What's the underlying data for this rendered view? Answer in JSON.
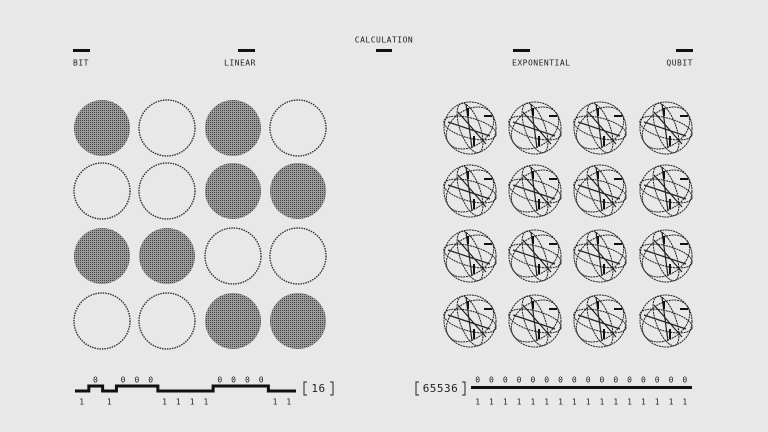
{
  "header": {
    "title": "CALCULATION",
    "left_label": "BIT",
    "left_mode": "LINEAR",
    "right_mode": "EXPONENTIAL",
    "right_label": "QUBIT"
  },
  "bits": [
    1,
    0,
    1,
    0,
    0,
    0,
    1,
    1,
    1,
    1,
    0,
    0,
    0,
    0,
    1,
    1
  ],
  "bit_count": 16,
  "state_count": 65536,
  "qubit_register": {
    "top": [
      0,
      0,
      0,
      0,
      0,
      0,
      0,
      0,
      0,
      0,
      0,
      0,
      0,
      0,
      0,
      0
    ],
    "bottom": [
      1,
      1,
      1,
      1,
      1,
      1,
      1,
      1,
      1,
      1,
      1,
      1,
      1,
      1,
      1,
      1
    ]
  }
}
